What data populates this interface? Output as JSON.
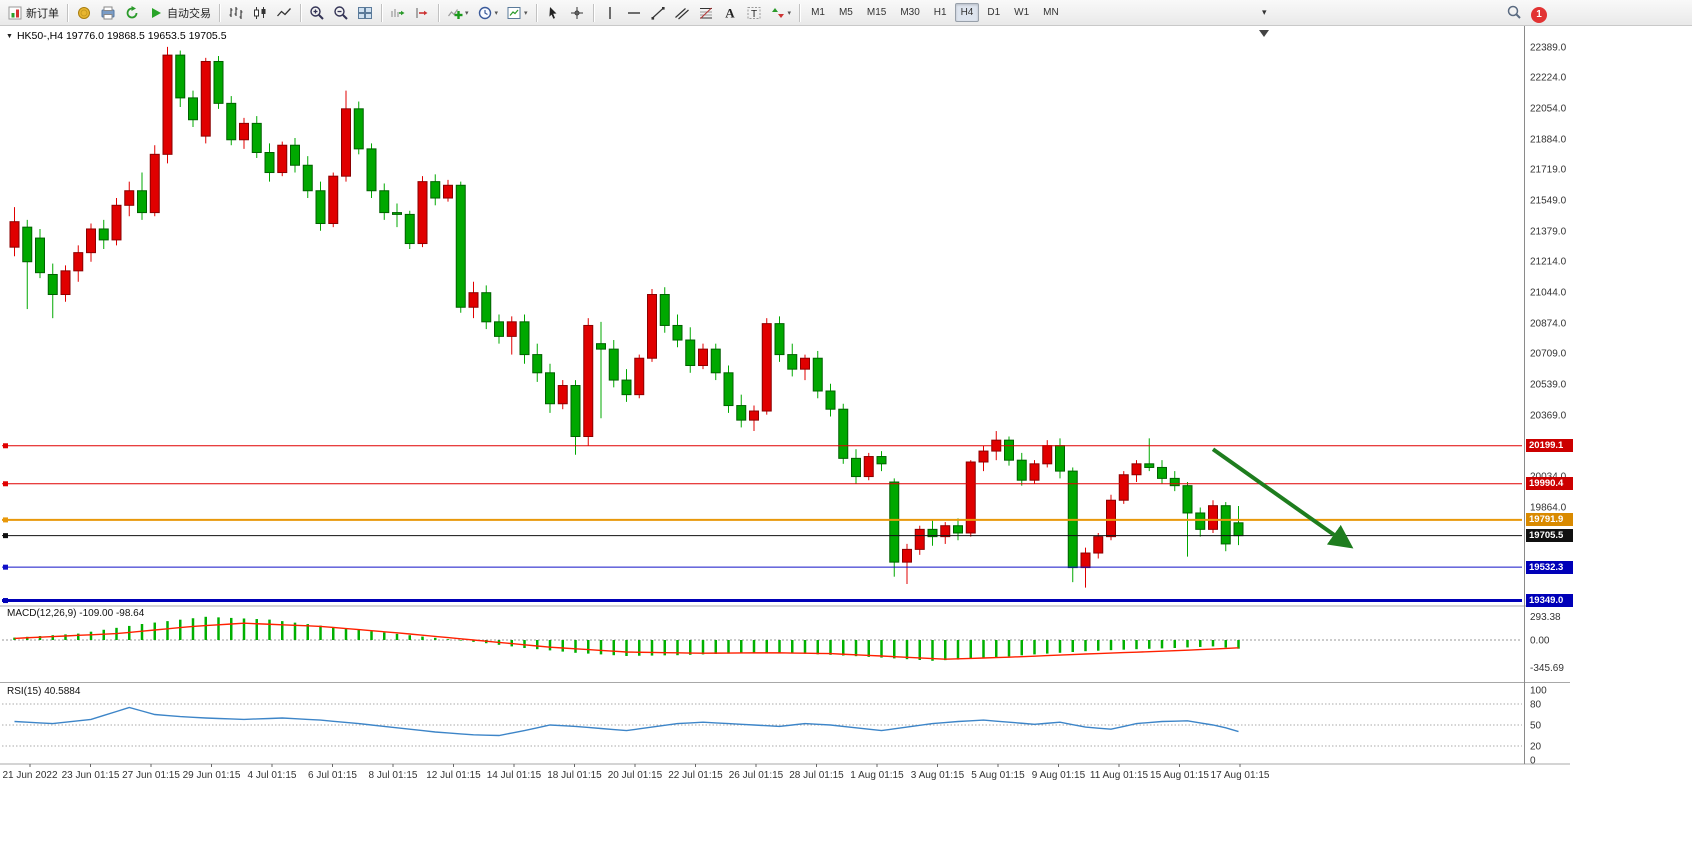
{
  "toolbar": {
    "notification_count": "1",
    "active_timeframe": "H4",
    "timeframes": [
      "M1",
      "M5",
      "M15",
      "M30",
      "H1",
      "H4",
      "D1",
      "W1",
      "MN"
    ],
    "items": [
      {
        "type": "button",
        "name": "new-order-button",
        "icon": "new-order",
        "label": "新订单"
      },
      {
        "type": "sep"
      },
      {
        "type": "button",
        "name": "mql-community-button",
        "icon": "gold"
      },
      {
        "type": "button",
        "name": "print-button",
        "icon": "print"
      },
      {
        "type": "button",
        "name": "refresh-button",
        "icon": "refresh"
      },
      {
        "type": "button",
        "name": "autotrading-button",
        "icon": "play",
        "label": "自动交易"
      },
      {
        "type": "sep"
      },
      {
        "type": "button",
        "name": "bar-chart-button",
        "icon": "bars"
      },
      {
        "type": "button",
        "name": "candlestick-chart-button",
        "icon": "candles"
      },
      {
        "type": "button",
        "name": "line-chart-button",
        "icon": "linechart"
      },
      {
        "type": "sep"
      },
      {
        "type": "button",
        "name": "zoom-in-button",
        "icon": "zoom-in"
      },
      {
        "type": "button",
        "name": "zoom-out-button",
        "icon": "zoom-out"
      },
      {
        "type": "button",
        "name": "tile-windows-button",
        "icon": "tile"
      },
      {
        "type": "sep"
      },
      {
        "type": "button",
        "name": "auto-scroll-button",
        "icon": "autoscroll"
      },
      {
        "type": "button",
        "name": "chart-shift-button",
        "icon": "shift"
      },
      {
        "type": "sep"
      },
      {
        "type": "button",
        "name": "indicators-button",
        "icon": "indicator-add",
        "dropdown": true
      },
      {
        "type": "button",
        "name": "periods-button",
        "icon": "clock",
        "dropdown": true
      },
      {
        "type": "button",
        "name": "templates-button",
        "icon": "template",
        "dropdown": true
      },
      {
        "type": "sep"
      },
      {
        "type": "button",
        "name": "cursor-button",
        "icon": "cursor"
      },
      {
        "type": "button",
        "name": "crosshair-button",
        "icon": "crosshair"
      },
      {
        "type": "sep"
      },
      {
        "type": "button",
        "name": "vertical-line-button",
        "icon": "vline"
      },
      {
        "type": "button",
        "name": "horizontal-line-button",
        "icon": "hline"
      },
      {
        "type": "button",
        "name": "trendline-button",
        "icon": "trendline"
      },
      {
        "type": "button",
        "name": "channel-button",
        "icon": "channel"
      },
      {
        "type": "button",
        "name": "fibonacci-button",
        "icon": "fibo"
      },
      {
        "type": "button",
        "name": "text-button",
        "icon": "textA"
      },
      {
        "type": "button",
        "name": "label-button",
        "icon": "textT"
      },
      {
        "type": "button",
        "name": "arrows-button",
        "icon": "arrows",
        "dropdown": true
      },
      {
        "type": "sep"
      },
      {
        "type": "timeframes"
      },
      {
        "type": "overflow",
        "name": "toolbar-overflow-icon"
      }
    ]
  },
  "chart": {
    "title_text": "HK50-,H4 19776.0 19868.5 19653.5 19705.5",
    "symbol": "HK50-",
    "period": "H4",
    "open": "19776.0",
    "high": "19868.5",
    "low": "19653.5",
    "close": "19705.5"
  },
  "indicators": {
    "macd_label": "MACD(12,26,9) -109.00 -98.64",
    "rsi_label": "RSI(15) 40.5884"
  },
  "chart_data": [
    {
      "type": "candlestick",
      "name": "HK50- H4 price",
      "note": "Chinese color convention: red = bullish, green = bearish",
      "up_color": "#e00000",
      "down_color": "#00a800",
      "ylim": [
        19330,
        22428
      ],
      "x_axis_labels": [
        "21 Jun 2022",
        "23 Jun 01:15",
        "27 Jun 01:15",
        "29 Jun 01:15",
        "4 Jul 01:15",
        "6 Jul 01:15",
        "8 Jul 01:15",
        "12 Jul 01:15",
        "14 Jul 01:15",
        "18 Jul 01:15",
        "20 Jul 01:15",
        "22 Jul 01:15",
        "26 Jul 01:15",
        "28 Jul 01:15",
        "1 Aug 01:15",
        "3 Aug 01:15",
        "5 Aug 01:15",
        "9 Aug 01:15",
        "11 Aug 01:15",
        "15 Aug 01:15",
        "17 Aug 01:15"
      ],
      "price_axis_labels": [
        "22389.0",
        "22224.0",
        "22054.0",
        "21884.0",
        "21719.0",
        "21549.0",
        "21379.0",
        "21214.0",
        "21044.0",
        "20874.0",
        "20709.0",
        "20539.0",
        "20369.0",
        "20034.0",
        "19864.0"
      ],
      "price_badges": [
        {
          "label": "20199.1",
          "price": 20199.1,
          "bg": "#cc0000"
        },
        {
          "label": "19990.4",
          "price": 19990.4,
          "bg": "#cc0000"
        },
        {
          "label": "19791.9",
          "price": 19791.9,
          "bg": "#d98a00"
        },
        {
          "label": "19705.5",
          "price": 19705.5,
          "bg": "#101010"
        },
        {
          "label": "19532.3",
          "price": 19532.3,
          "bg": "#0000b8"
        },
        {
          "label": "19349.0",
          "price": 19349.0,
          "bg": "#0000b8"
        }
      ],
      "hlines": [
        {
          "price": 20199.1,
          "color": "#e00000",
          "width": 1
        },
        {
          "price": 19990.4,
          "color": "#e00000",
          "width": 1
        },
        {
          "price": 19791.9,
          "color": "#e8980a",
          "width": 2
        },
        {
          "price": 19705.5,
          "color": "#101010",
          "width": 1
        },
        {
          "price": 19532.3,
          "color": "#1010c8",
          "width": 1
        },
        {
          "price": 19349.0,
          "color": "#0000b8",
          "width": 3
        }
      ],
      "trend_arrow": {
        "x1_index": 94,
        "price1": 20180,
        "x2_index": 104.5,
        "price2": 19660,
        "color": "#1e7d1e"
      },
      "candles": [
        [
          21290,
          21510,
          21240,
          21430
        ],
        [
          21400,
          21440,
          20950,
          21210
        ],
        [
          21340,
          21390,
          21120,
          21150
        ],
        [
          21140,
          21200,
          20900,
          21030
        ],
        [
          21030,
          21190,
          20990,
          21160
        ],
        [
          21160,
          21300,
          21100,
          21260
        ],
        [
          21260,
          21420,
          21210,
          21390
        ],
        [
          21390,
          21440,
          21280,
          21330
        ],
        [
          21330,
          21560,
          21300,
          21520
        ],
        [
          21520,
          21650,
          21460,
          21600
        ],
        [
          21600,
          21700,
          21440,
          21480
        ],
        [
          21480,
          21850,
          21460,
          21800
        ],
        [
          21800,
          22390,
          21750,
          22345
        ],
        [
          22345,
          22370,
          22060,
          22110
        ],
        [
          22110,
          22150,
          21950,
          21990
        ],
        [
          21900,
          22330,
          21860,
          22310
        ],
        [
          22310,
          22340,
          22050,
          22080
        ],
        [
          22080,
          22120,
          21850,
          21880
        ],
        [
          21880,
          22000,
          21830,
          21970
        ],
        [
          21970,
          22010,
          21780,
          21810
        ],
        [
          21810,
          21860,
          21650,
          21700
        ],
        [
          21700,
          21870,
          21680,
          21850
        ],
        [
          21850,
          21890,
          21700,
          21740
        ],
        [
          21740,
          21790,
          21560,
          21600
        ],
        [
          21600,
          21650,
          21380,
          21420
        ],
        [
          21420,
          21700,
          21400,
          21680
        ],
        [
          21680,
          22150,
          21650,
          22050
        ],
        [
          22050,
          22090,
          21800,
          21830
        ],
        [
          21830,
          21860,
          21560,
          21600
        ],
        [
          21600,
          21640,
          21440,
          21480
        ],
        [
          21480,
          21530,
          21400,
          21470
        ],
        [
          21470,
          21490,
          21280,
          21310
        ],
        [
          21310,
          21680,
          21290,
          21650
        ],
        [
          21650,
          21690,
          21520,
          21560
        ],
        [
          21560,
          21660,
          21540,
          21630
        ],
        [
          21630,
          21650,
          20930,
          20960
        ],
        [
          20960,
          21100,
          20900,
          21040
        ],
        [
          21040,
          21080,
          20840,
          20880
        ],
        [
          20880,
          20920,
          20760,
          20800
        ],
        [
          20800,
          20910,
          20700,
          20880
        ],
        [
          20880,
          20920,
          20650,
          20700
        ],
        [
          20700,
          20760,
          20550,
          20600
        ],
        [
          20600,
          20650,
          20380,
          20430
        ],
        [
          20430,
          20560,
          20400,
          20530
        ],
        [
          20530,
          20560,
          20150,
          20250
        ],
        [
          20250,
          20900,
          20200,
          20860
        ],
        [
          20760,
          20880,
          20350,
          20730
        ],
        [
          20730,
          20780,
          20520,
          20560
        ],
        [
          20560,
          20620,
          20440,
          20480
        ],
        [
          20480,
          20700,
          20460,
          20680
        ],
        [
          20680,
          21060,
          20660,
          21030
        ],
        [
          21030,
          21070,
          20820,
          20860
        ],
        [
          20860,
          20920,
          20740,
          20780
        ],
        [
          20780,
          20850,
          20600,
          20640
        ],
        [
          20640,
          20760,
          20620,
          20730
        ],
        [
          20730,
          20760,
          20560,
          20600
        ],
        [
          20600,
          20640,
          20380,
          20420
        ],
        [
          20420,
          20480,
          20300,
          20340
        ],
        [
          20340,
          20420,
          20280,
          20390
        ],
        [
          20390,
          20900,
          20370,
          20870
        ],
        [
          20870,
          20910,
          20660,
          20700
        ],
        [
          20700,
          20760,
          20580,
          20620
        ],
        [
          20620,
          20700,
          20560,
          20680
        ],
        [
          20680,
          20720,
          20460,
          20500
        ],
        [
          20500,
          20540,
          20360,
          20400
        ],
        [
          20400,
          20430,
          20100,
          20130
        ],
        [
          20130,
          20180,
          19990,
          20030
        ],
        [
          20030,
          20160,
          20010,
          20140
        ],
        [
          20140,
          20170,
          20060,
          20100
        ],
        [
          20000,
          20020,
          19480,
          19560
        ],
        [
          19560,
          19660,
          19440,
          19630
        ],
        [
          19630,
          19760,
          19600,
          19740
        ],
        [
          19740,
          19790,
          19650,
          19700
        ],
        [
          19700,
          19780,
          19660,
          19760
        ],
        [
          19760,
          19800,
          19680,
          19720
        ],
        [
          19720,
          20120,
          19700,
          20110
        ],
        [
          20110,
          20200,
          20060,
          20170
        ],
        [
          20170,
          20280,
          20120,
          20230
        ],
        [
          20230,
          20250,
          20090,
          20120
        ],
        [
          20120,
          20160,
          19980,
          20010
        ],
        [
          20010,
          20120,
          19990,
          20100
        ],
        [
          20100,
          20230,
          20080,
          20200
        ],
        [
          20200,
          20240,
          20020,
          20060
        ],
        [
          20060,
          20080,
          19450,
          19530
        ],
        [
          19530,
          19640,
          19420,
          19610
        ],
        [
          19610,
          19720,
          19580,
          19700
        ],
        [
          19700,
          19930,
          19680,
          19900
        ],
        [
          19900,
          20060,
          19880,
          20040
        ],
        [
          20040,
          20120,
          20000,
          20100
        ],
        [
          20100,
          20240,
          20060,
          20080
        ],
        [
          20080,
          20120,
          19990,
          20020
        ],
        [
          20020,
          20060,
          19950,
          19980
        ],
        [
          19980,
          20000,
          19590,
          19830
        ],
        [
          19830,
          19860,
          19700,
          19740
        ],
        [
          19740,
          19900,
          19720,
          19870
        ],
        [
          19870,
          19890,
          19620,
          19660
        ],
        [
          19776,
          19868.5,
          19653.5,
          19705.5
        ]
      ]
    },
    {
      "type": "bar",
      "name": "MACD",
      "label": "MACD(12,26,9) -109.00 -98.64",
      "params": "12,26,9",
      "values_text": [
        "-109.00",
        "-98.64"
      ],
      "scale_labels": [
        "293.38",
        "0.00",
        "-345.69"
      ],
      "scale_values": [
        293.38,
        0,
        -345.69
      ],
      "ylim": [
        -500,
        400
      ],
      "histogram_color": "#00b000",
      "signal_color": "#ff2000",
      "histogram": [
        30,
        40,
        50,
        60,
        70,
        80,
        104,
        128,
        152,
        176,
        200,
        218,
        236,
        254,
        272,
        290,
        283,
        276,
        269,
        262,
        255,
        236,
        217,
        199,
        180,
        162,
        145,
        127,
        110,
        93,
        77,
        60,
        43,
        27,
        10,
        -7,
        -23,
        -40,
        -60,
        -80,
        -100,
        -115,
        -130,
        -145,
        -160,
        -170,
        -180,
        -190,
        -200,
        -197,
        -195,
        -192,
        -190,
        -185,
        -180,
        -175,
        -170,
        -167,
        -165,
        -162,
        -160,
        -166,
        -172,
        -179,
        -185,
        -194,
        -202,
        -211,
        -220,
        -230,
        -240,
        -250,
        -260,
        -252,
        -245,
        -237,
        -230,
        -217,
        -205,
        -192,
        -180,
        -170,
        -160,
        -150,
        -140,
        -134,
        -127,
        -121,
        -115,
        -110,
        -105,
        -100,
        -93,
        -87,
        -80,
        -95,
        -109
      ],
      "signal": [
        20,
        28,
        35,
        43,
        50,
        58,
        65,
        73,
        80,
        95,
        110,
        125,
        140,
        155,
        170,
        180,
        190,
        200,
        210,
        203,
        197,
        190,
        183,
        177,
        170,
        157,
        143,
        130,
        117,
        103,
        90,
        75,
        60,
        45,
        30,
        15,
        0,
        -15,
        -30,
        -45,
        -60,
        -75,
        -90,
        -100,
        -110,
        -120,
        -130,
        -140,
        -150,
        -153,
        -155,
        -158,
        -160,
        -163,
        -165,
        -164,
        -163,
        -162,
        -161,
        -161,
        -160,
        -163,
        -165,
        -168,
        -170,
        -178,
        -185,
        -193,
        -200,
        -208,
        -216,
        -224,
        -232,
        -240,
        -235,
        -230,
        -225,
        -220,
        -215,
        -208,
        -202,
        -195,
        -188,
        -182,
        -175,
        -169,
        -163,
        -157,
        -152,
        -146,
        -140,
        -133,
        -127,
        -120,
        -113,
        -105,
        -98
      ]
    },
    {
      "type": "line",
      "name": "RSI",
      "label": "RSI(15) 40.5884",
      "period": "15",
      "current_value": "40.5884",
      "scale_labels": [
        "100",
        "80",
        "50",
        "20",
        "0"
      ],
      "scale_values": [
        100,
        80,
        50,
        20,
        0
      ],
      "levels": [
        80,
        50,
        20
      ],
      "ylim": [
        0,
        100
      ],
      "line_color": "#3d85c8",
      "values": [
        55,
        54,
        53,
        52,
        54,
        56,
        58,
        63.7,
        69.3,
        75,
        70,
        65,
        63.5,
        62,
        61,
        60,
        59.3,
        58.7,
        58,
        58.7,
        59.3,
        60,
        59,
        58,
        57,
        55.3,
        53.7,
        52,
        50,
        48,
        46,
        44,
        42,
        40,
        38.7,
        37.3,
        36,
        35.5,
        35,
        38.5,
        42,
        46,
        50,
        49,
        48,
        46.5,
        45,
        43.5,
        42,
        44.5,
        47,
        49.5,
        52,
        53,
        54,
        53,
        52,
        51,
        50,
        49,
        48,
        50,
        52,
        51,
        50,
        48,
        46,
        44,
        42,
        44.5,
        47,
        49.5,
        52,
        53.5,
        55,
        56,
        57,
        55.5,
        54,
        52.5,
        51,
        52.5,
        54,
        50.5,
        47,
        45.5,
        44,
        48,
        52,
        53.5,
        55,
        55.5,
        56,
        53,
        50,
        46,
        40.59
      ]
    }
  ]
}
